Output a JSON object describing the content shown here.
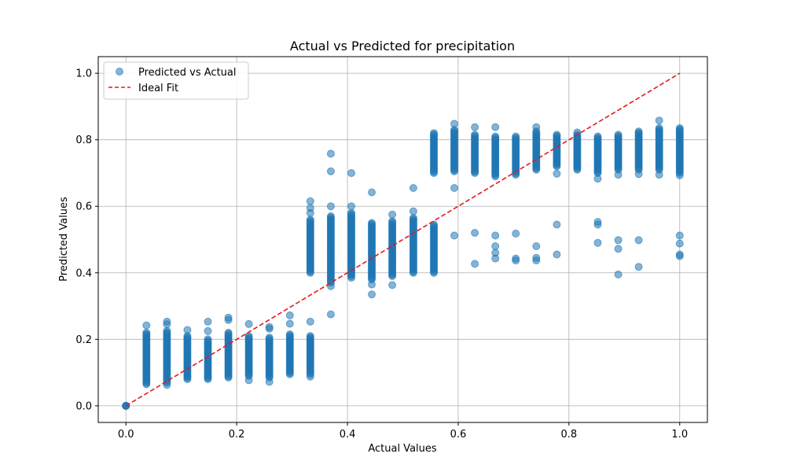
{
  "chart_data": {
    "type": "scatter",
    "title": "Actual vs Predicted for precipitation",
    "xlabel": "Actual Values",
    "ylabel": "Predicted Values",
    "xlim": [
      -0.05,
      1.05
    ],
    "ylim": [
      -0.05,
      1.05
    ],
    "xticks": [
      0.0,
      0.2,
      0.4,
      0.6,
      0.8,
      1.0
    ],
    "yticks": [
      0.0,
      0.2,
      0.4,
      0.6,
      0.8,
      1.0
    ],
    "xtick_labels": [
      "0.0",
      "0.2",
      "0.4",
      "0.6",
      "0.8",
      "1.0"
    ],
    "ytick_labels": [
      "0.0",
      "0.2",
      "0.4",
      "0.6",
      "0.8",
      "1.0"
    ],
    "grid": true,
    "legend_position": "upper-left",
    "legend": [
      "Predicted vs Actual",
      "Ideal Fit"
    ],
    "colors": {
      "points": "#1f77b4",
      "ideal_line": "#e41a1c",
      "grid": "#b0b0b0"
    },
    "series": [
      {
        "name": "Predicted vs Actual",
        "kind": "scatter",
        "clusters": [
          {
            "x": 0.0,
            "y_min": 0.0,
            "y_max": 0.0,
            "outliers": []
          },
          {
            "x": 0.037,
            "y_min": 0.065,
            "y_max": 0.22,
            "outliers": [
              0.242
            ]
          },
          {
            "x": 0.074,
            "y_min": 0.07,
            "y_max": 0.225,
            "outliers": [
              0.063,
              0.245,
              0.253
            ]
          },
          {
            "x": 0.111,
            "y_min": 0.08,
            "y_max": 0.21,
            "outliers": [
              0.228
            ]
          },
          {
            "x": 0.148,
            "y_min": 0.08,
            "y_max": 0.2,
            "outliers": [
              0.225,
              0.253
            ]
          },
          {
            "x": 0.185,
            "y_min": 0.085,
            "y_max": 0.22,
            "outliers": [
              0.258,
              0.265
            ]
          },
          {
            "x": 0.222,
            "y_min": 0.09,
            "y_max": 0.21,
            "outliers": [
              0.077,
              0.246
            ]
          },
          {
            "x": 0.259,
            "y_min": 0.085,
            "y_max": 0.205,
            "outliers": [
              0.072,
              0.232,
              0.237
            ]
          },
          {
            "x": 0.296,
            "y_min": 0.095,
            "y_max": 0.215,
            "outliers": [
              0.247,
              0.272
            ]
          },
          {
            "x": 0.333,
            "y_min": 0.095,
            "y_max": 0.21,
            "outliers": [
              0.088,
              0.253
            ]
          },
          {
            "x": 0.333,
            "y_min": 0.4,
            "y_max": 0.56,
            "outliers": [
              0.58,
              0.595,
              0.615
            ]
          },
          {
            "x": 0.37,
            "y_min": 0.37,
            "y_max": 0.57,
            "outliers": [
              0.275,
              0.36,
              0.6,
              0.705,
              0.758
            ]
          },
          {
            "x": 0.407,
            "y_min": 0.39,
            "y_max": 0.58,
            "outliers": [
              0.385,
              0.6,
              0.7
            ]
          },
          {
            "x": 0.444,
            "y_min": 0.38,
            "y_max": 0.55,
            "outliers": [
              0.335,
              0.365,
              0.642
            ]
          },
          {
            "x": 0.481,
            "y_min": 0.39,
            "y_max": 0.555,
            "outliers": [
              0.363,
              0.575
            ]
          },
          {
            "x": 0.519,
            "y_min": 0.4,
            "y_max": 0.565,
            "outliers": [
              0.585,
              0.655
            ]
          },
          {
            "x": 0.556,
            "y_min": 0.4,
            "y_max": 0.545,
            "outliers": []
          },
          {
            "x": 0.556,
            "y_min": 0.7,
            "y_max": 0.82,
            "outliers": []
          },
          {
            "x": 0.593,
            "y_min": 0.705,
            "y_max": 0.83,
            "outliers": [
              0.512,
              0.655,
              0.848
            ]
          },
          {
            "x": 0.63,
            "y_min": 0.7,
            "y_max": 0.815,
            "outliers": [
              0.427,
              0.52,
              0.838
            ]
          },
          {
            "x": 0.667,
            "y_min": 0.69,
            "y_max": 0.81,
            "outliers": [
              0.443,
              0.46,
              0.48,
              0.512,
              0.838
            ]
          },
          {
            "x": 0.704,
            "y_min": 0.695,
            "y_max": 0.81,
            "outliers": [
              0.437,
              0.443,
              0.518
            ]
          },
          {
            "x": 0.741,
            "y_min": 0.71,
            "y_max": 0.825,
            "outliers": [
              0.437,
              0.445,
              0.48,
              0.838
            ]
          },
          {
            "x": 0.778,
            "y_min": 0.72,
            "y_max": 0.815,
            "outliers": [
              0.455,
              0.545,
              0.698
            ]
          },
          {
            "x": 0.815,
            "y_min": 0.71,
            "y_max": 0.815,
            "outliers": [
              0.822
            ]
          },
          {
            "x": 0.852,
            "y_min": 0.7,
            "y_max": 0.81,
            "outliers": [
              0.49,
              0.545,
              0.553,
              0.683
            ]
          },
          {
            "x": 0.889,
            "y_min": 0.71,
            "y_max": 0.815,
            "outliers": [
              0.395,
              0.472,
              0.498,
              0.695
            ]
          },
          {
            "x": 0.926,
            "y_min": 0.71,
            "y_max": 0.825,
            "outliers": [
              0.418,
              0.498,
              0.697
            ]
          },
          {
            "x": 0.963,
            "y_min": 0.71,
            "y_max": 0.835,
            "outliers": [
              0.695,
              0.858
            ]
          },
          {
            "x": 1.0,
            "y_min": 0.7,
            "y_max": 0.835,
            "outliers": [
              0.45,
              0.455,
              0.488,
              0.512,
              0.693
            ]
          }
        ]
      },
      {
        "name": "Ideal Fit",
        "kind": "line",
        "style": "dashed",
        "x": [
          0.0,
          1.0
        ],
        "y": [
          0.0,
          1.0
        ]
      }
    ]
  }
}
